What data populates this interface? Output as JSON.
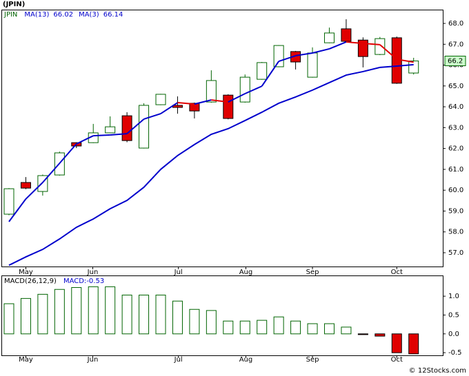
{
  "chart_data": {
    "type": "candlestick",
    "title": "(JPIN)",
    "ticker": "JPIN",
    "up_color": "#006400",
    "down_color": "#e00000",
    "candles": {
      "open": [
        58.85,
        60.37,
        59.94,
        60.73,
        62.28,
        62.28,
        62.75,
        63.57,
        62.02,
        64.1,
        64.07,
        64.17,
        64.23,
        64.56,
        64.23,
        65.32,
        65.92,
        66.65,
        65.42,
        67.07,
        67.74,
        67.2,
        66.51,
        67.31,
        65.62
      ],
      "high": [
        60.1,
        60.63,
        60.75,
        61.85,
        62.3,
        63.18,
        63.54,
        63.74,
        64.17,
        64.62,
        64.5,
        64.2,
        65.75,
        64.6,
        65.55,
        66.15,
        66.96,
        66.68,
        66.85,
        67.8,
        68.2,
        67.33,
        67.35,
        67.37,
        66.35
      ],
      "low": [
        58.8,
        60.05,
        59.74,
        60.7,
        62.02,
        62.26,
        62.73,
        62.3,
        62.0,
        64.08,
        63.67,
        63.44,
        64.2,
        63.4,
        64.2,
        65.3,
        65.9,
        65.79,
        65.4,
        67.05,
        67.1,
        65.89,
        66.48,
        65.1,
        65.55
      ],
      "close": [
        60.07,
        60.1,
        60.7,
        61.79,
        62.12,
        62.75,
        63.04,
        62.38,
        64.07,
        64.6,
        63.97,
        63.8,
        65.26,
        63.44,
        65.42,
        66.12,
        66.94,
        66.15,
        66.58,
        67.54,
        67.14,
        66.41,
        67.27,
        65.13,
        66.2
      ]
    },
    "ma13": {
      "name": "MA(13)",
      "color": "#0000cc",
      "values": [
        56.4,
        56.8,
        57.16,
        57.66,
        58.22,
        58.62,
        59.11,
        59.51,
        60.14,
        61.0,
        61.66,
        62.19,
        62.68,
        62.95,
        63.34,
        63.74,
        64.17,
        64.47,
        64.8,
        65.16,
        65.52,
        65.69,
        65.89,
        65.95,
        66.02
      ]
    },
    "ma3": {
      "name": "MA(3)",
      "color": "#0000cc",
      "down_color": "#e00000",
      "values": [
        58.49,
        59.58,
        60.37,
        61.29,
        62.22,
        62.61,
        62.65,
        62.71,
        63.41,
        63.67,
        64.2,
        64.13,
        64.33,
        64.23,
        64.63,
        64.99,
        66.18,
        66.45,
        66.58,
        66.78,
        67.11,
        67.04,
        66.98,
        66.28,
        66.14
      ]
    },
    "xlim": [
      -0.45,
      25.73
    ],
    "xticks": [
      {
        "value": 1,
        "label": "May"
      },
      {
        "value": 4.97,
        "label": "Jun"
      },
      {
        "value": 10.05,
        "label": "Jul"
      },
      {
        "value": 14.05,
        "label": "Aug"
      },
      {
        "value": 18,
        "label": "Sep"
      },
      {
        "value": 23,
        "label": "Oct"
      }
    ],
    "ylim": [
      56.34,
      68.66
    ],
    "yticks": [
      {
        "value": 57,
        "label": "57.0"
      },
      {
        "value": 58,
        "label": "58.0"
      },
      {
        "value": 59,
        "label": "59.0"
      },
      {
        "value": 60,
        "label": "60.0"
      },
      {
        "value": 61,
        "label": "61.0"
      },
      {
        "value": 62,
        "label": "62.0"
      },
      {
        "value": 63,
        "label": "63.0"
      },
      {
        "value": 64,
        "label": "64.0"
      },
      {
        "value": 65,
        "label": "65.0"
      },
      {
        "value": 66,
        "label": "66.0"
      },
      {
        "value": 67,
        "label": "67.0"
      },
      {
        "value": 68,
        "label": "68.0"
      }
    ],
    "macd": {
      "name": "MACD(26,12,9)",
      "label": "MACD:",
      "color": "#0000cc",
      "values": [
        0.8,
        0.94,
        1.05,
        1.18,
        1.23,
        1.25,
        1.25,
        1.03,
        1.03,
        1.03,
        0.87,
        0.65,
        0.62,
        0.34,
        0.34,
        0.36,
        0.45,
        0.34,
        0.27,
        0.27,
        0.18,
        -0.02,
        -0.06,
        -0.5,
        -0.53
      ],
      "ylim": [
        -0.57,
        1.55
      ],
      "yticks": [
        {
          "value": 1,
          "label": "1.0"
        },
        {
          "value": 0.5,
          "label": "0.5"
        },
        {
          "value": 0,
          "label": "0.0"
        },
        {
          "value": -0.5,
          "label": "-0.5"
        }
      ]
    },
    "footer": "© 12Stocks.com"
  }
}
